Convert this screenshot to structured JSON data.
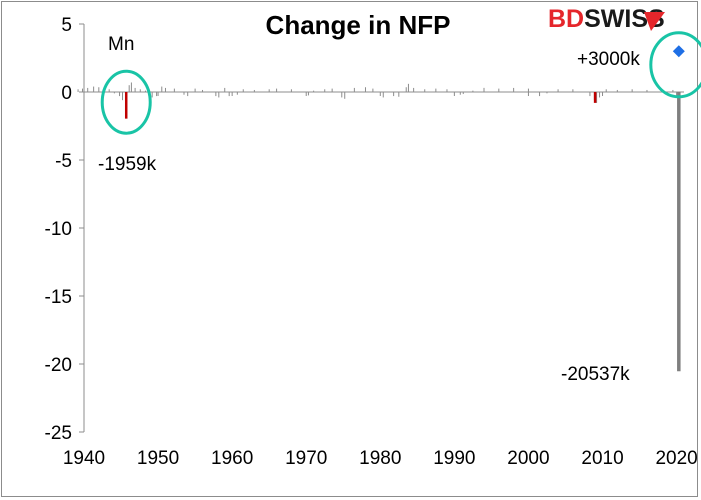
{
  "chart_data": {
    "type": "bar",
    "title": "Change in NFP",
    "ylabel": "Mn",
    "xlabel": "",
    "xlim": [
      1940,
      2021
    ],
    "ylim": [
      -25,
      5
    ],
    "x_ticks": [
      "1940",
      "1950",
      "1960",
      "1970",
      "1980",
      "1990",
      "2000",
      "2010",
      "2020"
    ],
    "y_ticks": [
      "5",
      "0",
      "-5",
      "-10",
      "-15",
      "-20",
      "-25"
    ],
    "grid": false,
    "series": [
      {
        "values": [
          [
            1939.2,
            0.2
          ],
          [
            1939.8,
            0.25
          ],
          [
            1940.5,
            0.3
          ],
          [
            1941.3,
            0.4
          ],
          [
            1942.0,
            0.35
          ],
          [
            1942.7,
            0.3
          ],
          [
            1943.4,
            0.2
          ],
          [
            1944.1,
            -0.1
          ],
          [
            1944.8,
            -0.3
          ],
          [
            1945.2,
            -0.6
          ],
          [
            1946.1,
            0.5
          ],
          [
            1946.4,
            0.7
          ],
          [
            1946.9,
            0.3
          ],
          [
            1947.6,
            0.2
          ],
          [
            1948.3,
            0.1
          ],
          [
            1949.2,
            -0.4
          ],
          [
            1949.8,
            -0.3
          ],
          [
            1950.5,
            0.4
          ],
          [
            1951.0,
            0.3
          ],
          [
            1952.2,
            0.25
          ],
          [
            1953.5,
            -0.2
          ],
          [
            1954.0,
            -0.3
          ],
          [
            1955.0,
            0.25
          ],
          [
            1956.0,
            0.15
          ],
          [
            1957.8,
            -0.3
          ],
          [
            1958.2,
            -0.4
          ],
          [
            1959.0,
            0.3
          ],
          [
            1959.6,
            -0.3
          ],
          [
            1960.7,
            -0.2
          ],
          [
            1961.5,
            0.2
          ],
          [
            1963.0,
            0.15
          ],
          [
            1965.0,
            0.2
          ],
          [
            1966.0,
            0.25
          ],
          [
            1968.0,
            0.2
          ],
          [
            1970.3,
            -0.25
          ],
          [
            1971.0,
            0.1
          ],
          [
            1972.5,
            0.2
          ],
          [
            1973.5,
            0.25
          ],
          [
            1974.8,
            -0.4
          ],
          [
            1975.2,
            -0.5
          ],
          [
            1976.5,
            0.3
          ],
          [
            1978.0,
            0.35
          ],
          [
            1979.0,
            0.25
          ],
          [
            1980.4,
            -0.4
          ],
          [
            1981.8,
            -0.3
          ],
          [
            1982.5,
            -0.35
          ],
          [
            1983.8,
            0.6
          ],
          [
            1983.5,
            0.35
          ],
          [
            1984.5,
            0.3
          ],
          [
            1986.0,
            0.2
          ],
          [
            1987.5,
            0.25
          ],
          [
            1989.0,
            0.2
          ],
          [
            1990.8,
            -0.2
          ],
          [
            1991.2,
            -0.15
          ],
          [
            1992.5,
            0.1
          ],
          [
            1994.0,
            0.3
          ],
          [
            1996.0,
            0.25
          ],
          [
            1998.0,
            0.3
          ],
          [
            2000.0,
            0.25
          ],
          [
            2001.5,
            -0.3
          ],
          [
            2002.5,
            -0.1
          ],
          [
            2004.0,
            0.2
          ],
          [
            2006.0,
            0.2
          ],
          [
            2008.3,
            -0.3
          ],
          [
            2008.9,
            -0.6
          ],
          [
            2009.2,
            -0.8
          ],
          [
            2009.6,
            -0.4
          ],
          [
            2010.5,
            0.2
          ],
          [
            2012.0,
            0.15
          ],
          [
            2014.0,
            0.2
          ],
          [
            2016.0,
            0.15
          ],
          [
            2018.0,
            0.15
          ],
          [
            2019.5,
            0.15
          ]
        ]
      }
    ],
    "highlighted_bars": [
      {
        "x": 1945.7,
        "value": -1.959,
        "color": "#c00000"
      },
      {
        "x": 2009.0,
        "value": -0.8,
        "color": "#c00000"
      }
    ],
    "final_bar": {
      "x": 2020.3,
      "value": -20.537,
      "color": "#7f7f7f"
    },
    "marker": {
      "x": 2020.3,
      "value": 3.0,
      "color": "#1f6fe5"
    },
    "annotations": [
      {
        "text": "-1959k"
      },
      {
        "text": "+3000k"
      },
      {
        "text": "-20537k"
      }
    ],
    "highlight_circles": [
      {
        "around": "1945 drop",
        "color": "#19c4a6"
      },
      {
        "around": "2020 data",
        "color": "#19c4a6"
      }
    ]
  },
  "logo": {
    "part1": "BD",
    "part2": "SWISS"
  }
}
